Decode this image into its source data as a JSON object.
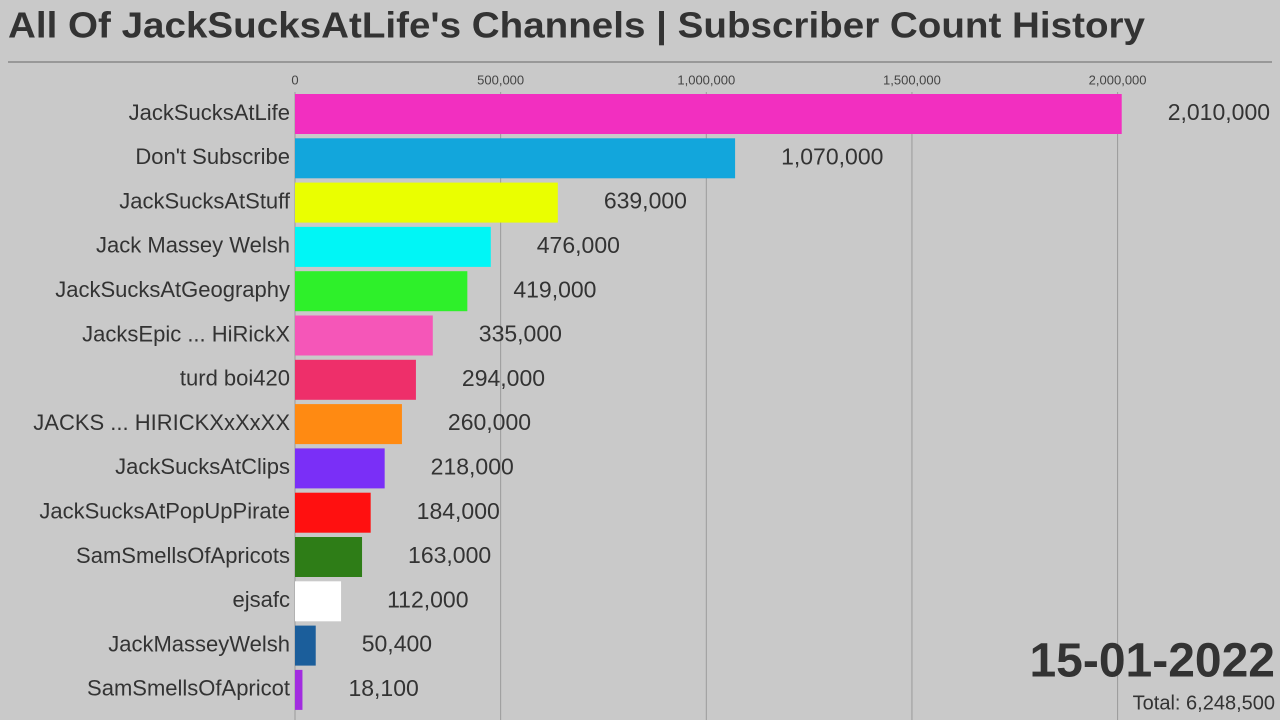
{
  "chart_data": {
    "type": "bar",
    "orientation": "horizontal",
    "title": "All Of JackSucksAtLife's Channels | Subscriber Count History",
    "date": "15-01-2022",
    "total": "Total: 6,248,500",
    "categories": [
      "JackSucksAtLife",
      "Don't Subscribe",
      "JackSucksAtStuff",
      "Jack Massey Welsh",
      "JackSucksAtGeography",
      "JacksEpic ... HiRickX",
      "turd boi420",
      "JACKS ... HIRICKXxXxXX",
      "JackSucksAtClips",
      "JackSucksAtPopUpPirate",
      "SamSmellsOfApricots",
      "ejsafc",
      "JackMasseyWelsh",
      "SamSmellsOfApricot"
    ],
    "values": [
      2010000,
      1070000,
      639000,
      476000,
      419000,
      335000,
      294000,
      260000,
      218000,
      184000,
      163000,
      112000,
      50400,
      18100
    ],
    "value_labels": [
      "2,010,000",
      "1,070,000",
      "639,000",
      "476,000",
      "419,000",
      "335,000",
      "294,000",
      "260,000",
      "218,000",
      "184,000",
      "163,000",
      "112,000",
      "50,400",
      "18,100"
    ],
    "colors": [
      "#f22fc0",
      "#12a6dc",
      "#eaff00",
      "#00f6f6",
      "#2ef02a",
      "#f556b8",
      "#ee2f6a",
      "#ff8a12",
      "#7a2ff7",
      "#ff1010",
      "#2e7d17",
      "#ffffff",
      "#1b5e9b",
      "#a22ce0"
    ],
    "xlim": [
      0,
      2390000
    ],
    "xticks": [
      0,
      {
        "value": 500000,
        "label": "500,000"
      },
      {
        "value": 1000000,
        "label": "1,000,000"
      },
      {
        "value": 1500000,
        "label": "1,500,000"
      },
      {
        "value": 2000000,
        "label": "2,000,000"
      }
    ],
    "grid": true
  }
}
